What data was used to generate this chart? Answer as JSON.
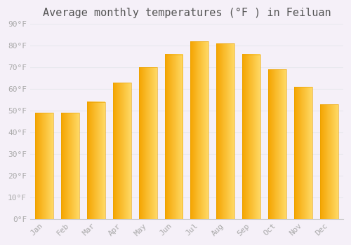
{
  "title": "Average monthly temperatures (°F ) in Feiluan",
  "months": [
    "Jan",
    "Feb",
    "Mar",
    "Apr",
    "May",
    "Jun",
    "Jul",
    "Aug",
    "Sep",
    "Oct",
    "Nov",
    "Dec"
  ],
  "values": [
    49,
    49,
    54,
    63,
    70,
    76,
    82,
    81,
    76,
    69,
    61,
    53
  ],
  "bar_color_left": "#F5A800",
  "bar_color_right": "#FFD966",
  "ylim": [
    0,
    90
  ],
  "yticks": [
    0,
    10,
    20,
    30,
    40,
    50,
    60,
    70,
    80,
    90
  ],
  "ytick_labels": [
    "0°F",
    "10°F",
    "20°F",
    "30°F",
    "40°F",
    "50°F",
    "60°F",
    "70°F",
    "80°F",
    "90°F"
  ],
  "background_color": "#f5f0f8",
  "plot_bg_color": "#f5f0f8",
  "grid_color": "#e8e8ee",
  "title_fontsize": 11,
  "tick_fontsize": 8,
  "title_color": "#555555",
  "tick_color": "#aaaaaa",
  "bar_width": 0.7,
  "spine_color": "#cccccc"
}
